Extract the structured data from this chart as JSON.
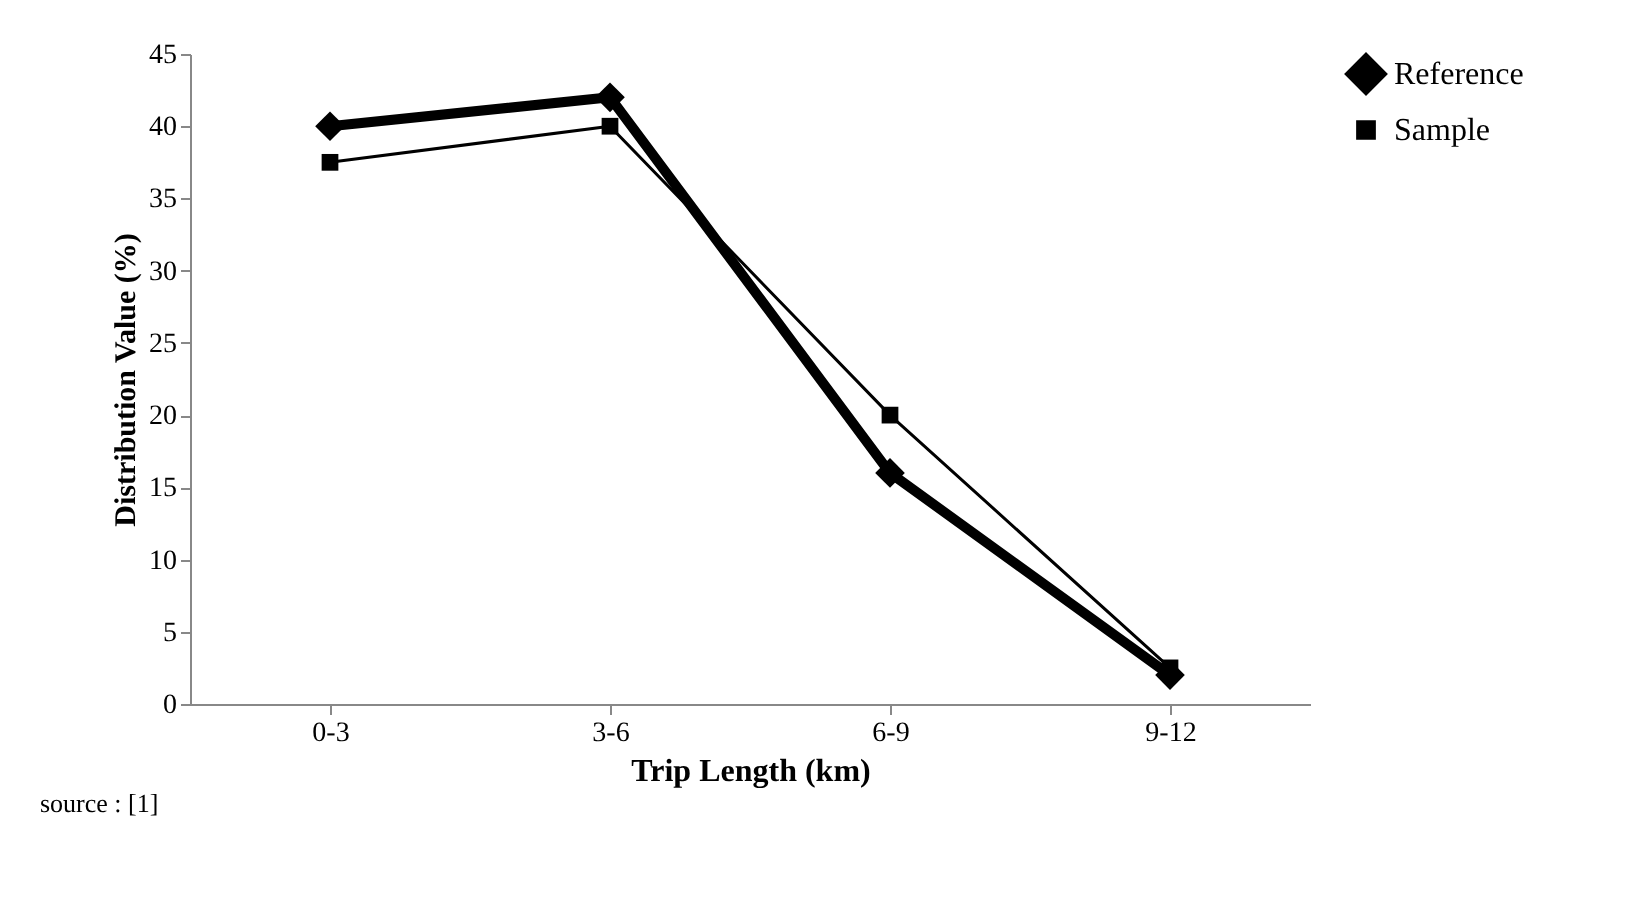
{
  "chart_data": {
    "type": "line",
    "xlabel": "Trip Length (km)",
    "ylabel": "Distribution Value (%)",
    "categories": [
      "0-3",
      "3-6",
      "6-9",
      "9-12"
    ],
    "series": [
      {
        "name": "Reference",
        "color": "#000000",
        "marker": "diamond",
        "values": [
          40,
          42,
          16,
          2
        ]
      },
      {
        "name": "Sample",
        "color": "#000000",
        "marker": "square",
        "values": [
          37.5,
          40,
          20,
          2.5
        ]
      }
    ],
    "ylim": [
      0,
      45
    ],
    "yticks": [
      0,
      5,
      10,
      15,
      20,
      25,
      30,
      35,
      40,
      45
    ],
    "grid": false,
    "legend": "right",
    "line_style": "solid",
    "annotations": [
      "source : [1]"
    ]
  }
}
